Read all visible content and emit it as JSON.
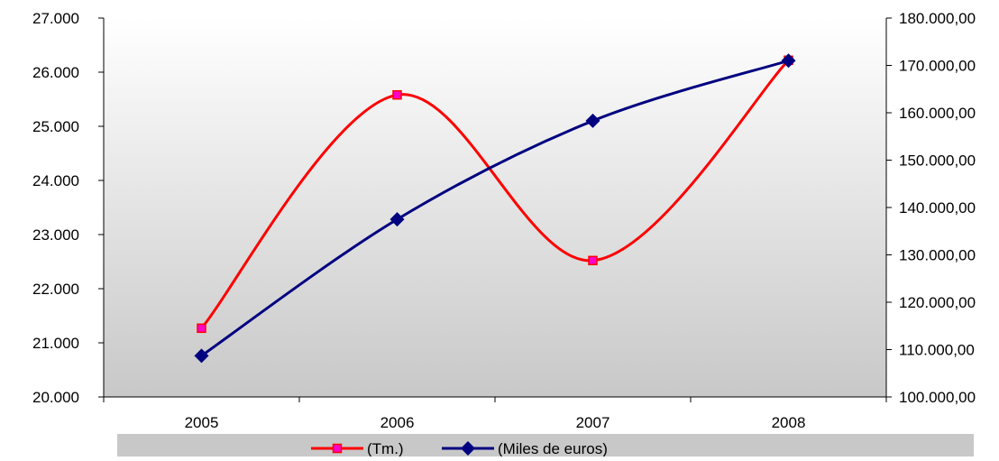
{
  "chart_data": {
    "type": "line",
    "categories": [
      "2005",
      "2006",
      "2007",
      "2008"
    ],
    "y_left": {
      "min": 20000,
      "max": 27000,
      "step": 1000,
      "tick_labels": [
        "20.000",
        "21.000",
        "22.000",
        "23.000",
        "24.000",
        "25.000",
        "26.000",
        "27.000"
      ]
    },
    "y_right": {
      "min": 100000,
      "max": 180000,
      "step": 10000,
      "tick_labels": [
        "100.000,00",
        "110.000,00",
        "120.000,00",
        "130.000,00",
        "140.000,00",
        "150.000,00",
        "160.000,00",
        "170.000,00",
        "180.000,00"
      ]
    },
    "series": [
      {
        "name": "(Tm.)",
        "axis": "left",
        "values": [
          21270,
          25580,
          22520,
          26220
        ],
        "color": "#ff0000",
        "marker": "square",
        "marker_color": "#ff00cc"
      },
      {
        "name": "(Miles de euros)",
        "axis": "right",
        "values": [
          108700,
          137500,
          158300,
          171000
        ],
        "color": "#000080",
        "marker": "diamond",
        "marker_color": "#000080"
      }
    ],
    "grid": false,
    "smoothed": true,
    "legend_position": "bottom",
    "background_gradient": [
      "#ffffff",
      "#c8c8c8"
    ]
  }
}
